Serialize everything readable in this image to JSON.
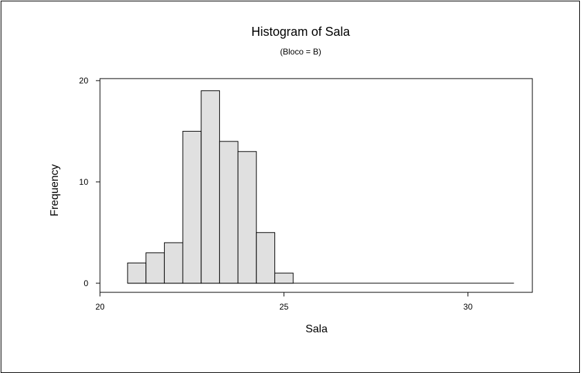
{
  "chart_data": {
    "type": "bar",
    "title": "Histogram of Sala",
    "subtitle": "(Bloco = B)",
    "xlabel": "Sala",
    "ylabel": "Frequency",
    "bins": [
      {
        "start": 20.75,
        "end": 21.25,
        "count": 2
      },
      {
        "start": 21.25,
        "end": 21.75,
        "count": 3
      },
      {
        "start": 21.75,
        "end": 22.25,
        "count": 4
      },
      {
        "start": 22.25,
        "end": 22.75,
        "count": 15
      },
      {
        "start": 22.75,
        "end": 23.25,
        "count": 19
      },
      {
        "start": 23.25,
        "end": 23.75,
        "count": 14
      },
      {
        "start": 23.75,
        "end": 24.25,
        "count": 13
      },
      {
        "start": 24.25,
        "end": 24.75,
        "count": 5
      },
      {
        "start": 24.75,
        "end": 25.25,
        "count": 1
      }
    ],
    "zero_line_end": 31.25,
    "xticks": [
      20,
      25,
      30
    ],
    "yticks": [
      0,
      10,
      20
    ],
    "xlim": [
      20.0,
      31.75
    ],
    "ylim": [
      -0.9,
      20.2
    ],
    "bar_color": "#e0e0e0",
    "grid": false,
    "legend": "none"
  }
}
